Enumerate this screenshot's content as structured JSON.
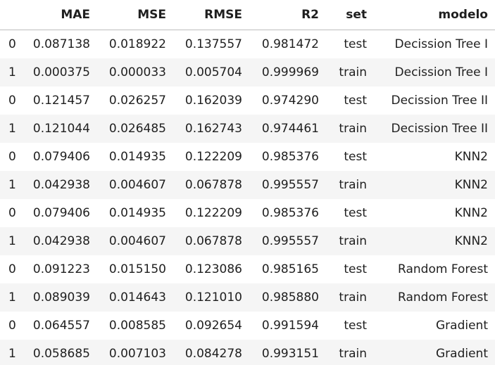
{
  "table": {
    "columns": [
      "",
      "MAE",
      "MSE",
      "RMSE",
      "R2",
      "set",
      "modelo"
    ],
    "rows": [
      {
        "index": "0",
        "mae": "0.087138",
        "mse": "0.018922",
        "rmse": "0.137557",
        "r2": "0.981472",
        "set": "test",
        "modelo": "Decission Tree I"
      },
      {
        "index": "1",
        "mae": "0.000375",
        "mse": "0.000033",
        "rmse": "0.005704",
        "r2": "0.999969",
        "set": "train",
        "modelo": "Decission Tree I"
      },
      {
        "index": "0",
        "mae": "0.121457",
        "mse": "0.026257",
        "rmse": "0.162039",
        "r2": "0.974290",
        "set": "test",
        "modelo": "Decission Tree II"
      },
      {
        "index": "1",
        "mae": "0.121044",
        "mse": "0.026485",
        "rmse": "0.162743",
        "r2": "0.974461",
        "set": "train",
        "modelo": "Decission Tree II"
      },
      {
        "index": "0",
        "mae": "0.079406",
        "mse": "0.014935",
        "rmse": "0.122209",
        "r2": "0.985376",
        "set": "test",
        "modelo": "KNN2"
      },
      {
        "index": "1",
        "mae": "0.042938",
        "mse": "0.004607",
        "rmse": "0.067878",
        "r2": "0.995557",
        "set": "train",
        "modelo": "KNN2"
      },
      {
        "index": "0",
        "mae": "0.079406",
        "mse": "0.014935",
        "rmse": "0.122209",
        "r2": "0.985376",
        "set": "test",
        "modelo": "KNN2"
      },
      {
        "index": "1",
        "mae": "0.042938",
        "mse": "0.004607",
        "rmse": "0.067878",
        "r2": "0.995557",
        "set": "train",
        "modelo": "KNN2"
      },
      {
        "index": "0",
        "mae": "0.091223",
        "mse": "0.015150",
        "rmse": "0.123086",
        "r2": "0.985165",
        "set": "test",
        "modelo": "Random Forest"
      },
      {
        "index": "1",
        "mae": "0.089039",
        "mse": "0.014643",
        "rmse": "0.121010",
        "r2": "0.985880",
        "set": "train",
        "modelo": "Random Forest"
      },
      {
        "index": "0",
        "mae": "0.064557",
        "mse": "0.008585",
        "rmse": "0.092654",
        "r2": "0.991594",
        "set": "test",
        "modelo": "Gradient"
      },
      {
        "index": "1",
        "mae": "0.058685",
        "mse": "0.007103",
        "rmse": "0.084278",
        "r2": "0.993151",
        "set": "train",
        "modelo": "Gradient"
      }
    ]
  },
  "colors": {
    "header_rule": "#bdbdbd",
    "stripe": "#f5f5f5",
    "text": "#1f1f1f"
  }
}
